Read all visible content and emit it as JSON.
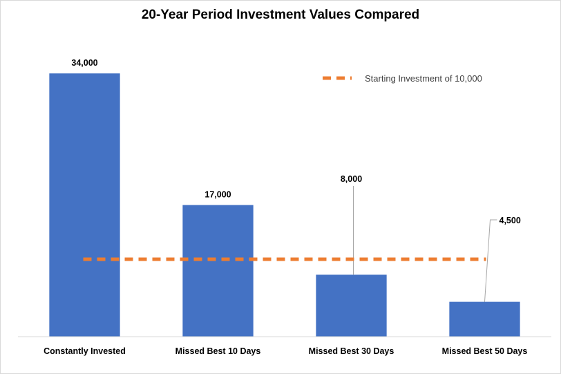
{
  "chart_data": {
    "type": "bar",
    "title": "20-Year Period Investment Values Compared",
    "categories": [
      "Constantly Invested",
      "Missed Best 10 Days",
      "Missed Best 30 Days",
      "Missed Best 50 Days"
    ],
    "values": [
      34000,
      17000,
      8000,
      4500
    ],
    "data_labels": [
      "34,000",
      "17,000",
      "8,000",
      "4,500"
    ],
    "bar_color": "#4472C4",
    "reference_line": {
      "name": "Starting Investment of 10,000",
      "value": 10000,
      "color": "#ED7D31",
      "style": "dashed"
    },
    "ylim": [
      0,
      40000
    ],
    "grid": false,
    "legend_position": "top-right"
  }
}
